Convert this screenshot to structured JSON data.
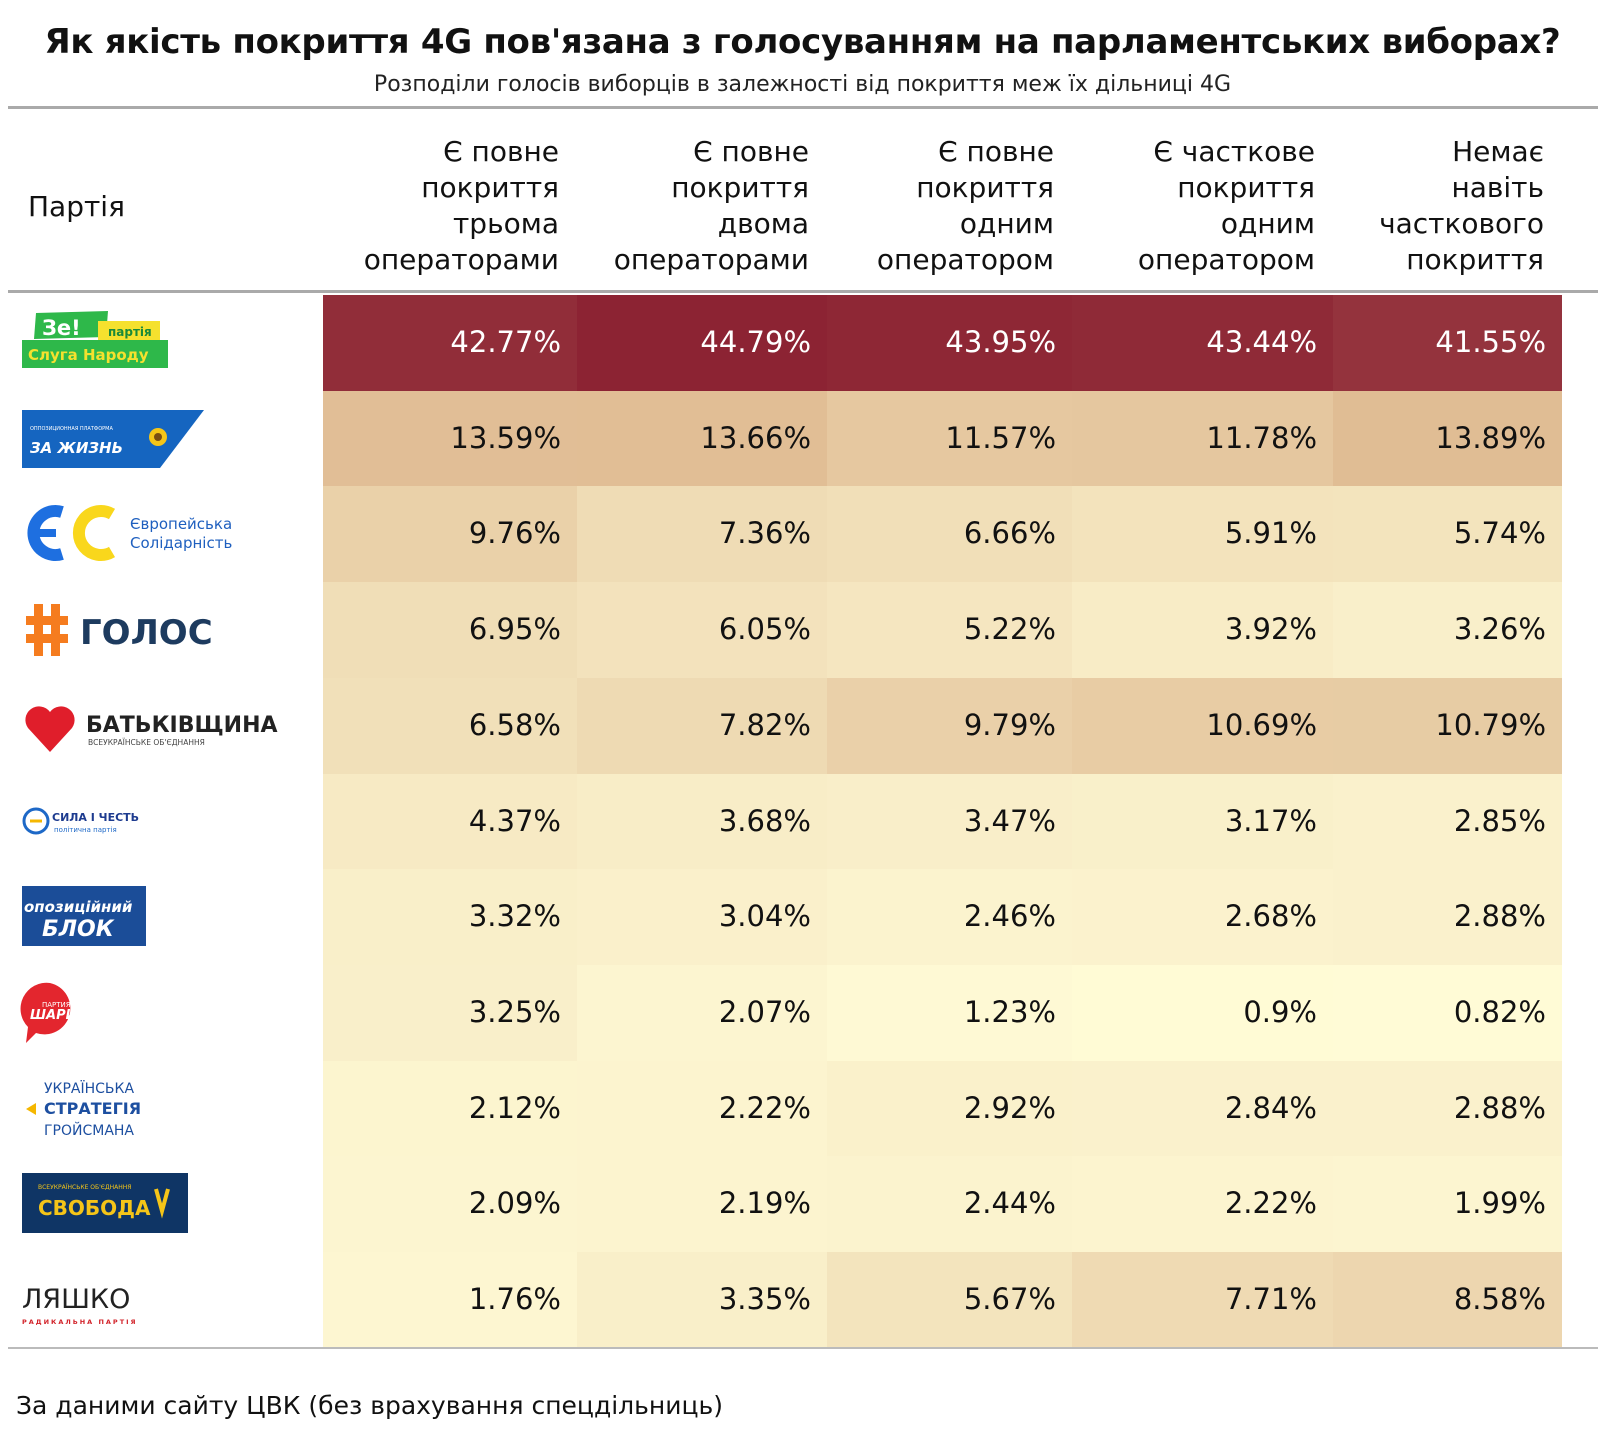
{
  "title": "Як якість покриття 4G пов'язана з голосуванням на парламентських виборах?",
  "subtitle": "Розподіли голосів виборців в залежності від покриття меж їх дільниці 4G",
  "footer": "За даними сайту ЦВК (без врахування спецдільниць)",
  "chart_data": {
    "type": "table",
    "row_header": "Партія",
    "columns": [
      {
        "lines": [
          "Є повне",
          "покриття",
          "трьома",
          "операторами"
        ]
      },
      {
        "lines": [
          "Є повне",
          "покриття",
          "двома",
          "операторами"
        ]
      },
      {
        "lines": [
          "Є повне",
          "покриття",
          "одним",
          "оператором"
        ]
      },
      {
        "lines": [
          "Є часткове",
          "покриття",
          "одним",
          "оператором"
        ]
      },
      {
        "lines": [
          "Немає",
          "навіть",
          "часткового",
          "покриття"
        ]
      }
    ],
    "rows": [
      {
        "logo": "ze-sluha-narodu-logo",
        "logo_lines": [
          "Зе!",
          "партія",
          "Слуга Народу"
        ],
        "values": [
          42.77,
          44.79,
          43.95,
          43.44,
          41.55
        ],
        "labels": [
          "42.77%",
          "44.79%",
          "43.95%",
          "43.44%",
          "41.55%"
        ]
      },
      {
        "logo": "opzzh-logo",
        "logo_lines": [
          "ОППОЗИЦИОННАЯ ПЛАТФОРМА",
          "ЗА ЖИЗНЬ"
        ],
        "values": [
          13.59,
          13.66,
          11.57,
          11.78,
          13.89
        ],
        "labels": [
          "13.59%",
          "13.66%",
          "11.57%",
          "11.78%",
          "13.89%"
        ]
      },
      {
        "logo": "es-logo",
        "logo_lines": [
          "Європейська",
          "Солідарність"
        ],
        "values": [
          9.76,
          7.36,
          6.66,
          5.91,
          5.74
        ],
        "labels": [
          "9.76%",
          "7.36%",
          "6.66%",
          "5.91%",
          "5.74%"
        ]
      },
      {
        "logo": "holos-logo",
        "logo_lines": [
          "ГОЛОС"
        ],
        "values": [
          6.95,
          6.05,
          5.22,
          3.92,
          3.26
        ],
        "labels": [
          "6.95%",
          "6.05%",
          "5.22%",
          "3.92%",
          "3.26%"
        ]
      },
      {
        "logo": "batkivshchyna-logo",
        "logo_lines": [
          "БАТЬКІВЩИНА",
          "ВСЕУКРАЇНСЬКЕ ОБ'ЄДНАННЯ"
        ],
        "values": [
          6.58,
          7.82,
          9.79,
          10.69,
          10.79
        ],
        "labels": [
          "6.58%",
          "7.82%",
          "9.79%",
          "10.69%",
          "10.79%"
        ]
      },
      {
        "logo": "syla-i-chest-logo",
        "logo_lines": [
          "СИЛА І ЧЕСТЬ",
          "політична партія"
        ],
        "values": [
          4.37,
          3.68,
          3.47,
          3.17,
          2.85
        ],
        "labels": [
          "4.37%",
          "3.68%",
          "3.47%",
          "3.17%",
          "2.85%"
        ]
      },
      {
        "logo": "opozytsiinyi-blok-logo",
        "logo_lines": [
          "опозиційний",
          "БЛОК"
        ],
        "values": [
          3.32,
          3.04,
          2.46,
          2.68,
          2.88
        ],
        "labels": [
          "3.32%",
          "3.04%",
          "2.46%",
          "2.68%",
          "2.88%"
        ]
      },
      {
        "logo": "partiia-shariia-logo",
        "logo_lines": [
          "ПАРТИЯ",
          "ШАРИЯ"
        ],
        "values": [
          3.25,
          2.07,
          1.23,
          0.9,
          0.82
        ],
        "labels": [
          "3.25%",
          "2.07%",
          "1.23%",
          "0.9%",
          "0.82%"
        ]
      },
      {
        "logo": "ukrainska-stratehiia-hroismana-logo",
        "logo_lines": [
          "УКРАЇНСЬКА",
          "СТРАТЕГІЯ",
          "ГРОЙСМАНА"
        ],
        "values": [
          2.12,
          2.22,
          2.92,
          2.84,
          2.88
        ],
        "labels": [
          "2.12%",
          "2.22%",
          "2.92%",
          "2.84%",
          "2.88%"
        ]
      },
      {
        "logo": "svoboda-logo",
        "logo_lines": [
          "ВСЕУКРАЇНСЬКЕ ОБ'ЄДНАННЯ",
          "СВОБОДА"
        ],
        "values": [
          2.09,
          2.19,
          2.44,
          2.22,
          1.99
        ],
        "labels": [
          "2.09%",
          "2.19%",
          "2.44%",
          "2.22%",
          "1.99%"
        ]
      },
      {
        "logo": "liashko-logo",
        "logo_lines": [
          "ЛЯШКО",
          "РАДИКАЛЬНА ПАРТІЯ"
        ],
        "values": [
          1.76,
          3.35,
          5.67,
          7.71,
          8.58
        ],
        "labels": [
          "1.76%",
          "3.35%",
          "5.67%",
          "7.71%",
          "8.58%"
        ]
      }
    ],
    "color_scale": {
      "low": "#fffbd6",
      "mid": "#e0bd94",
      "high": "#8b2232"
    }
  }
}
